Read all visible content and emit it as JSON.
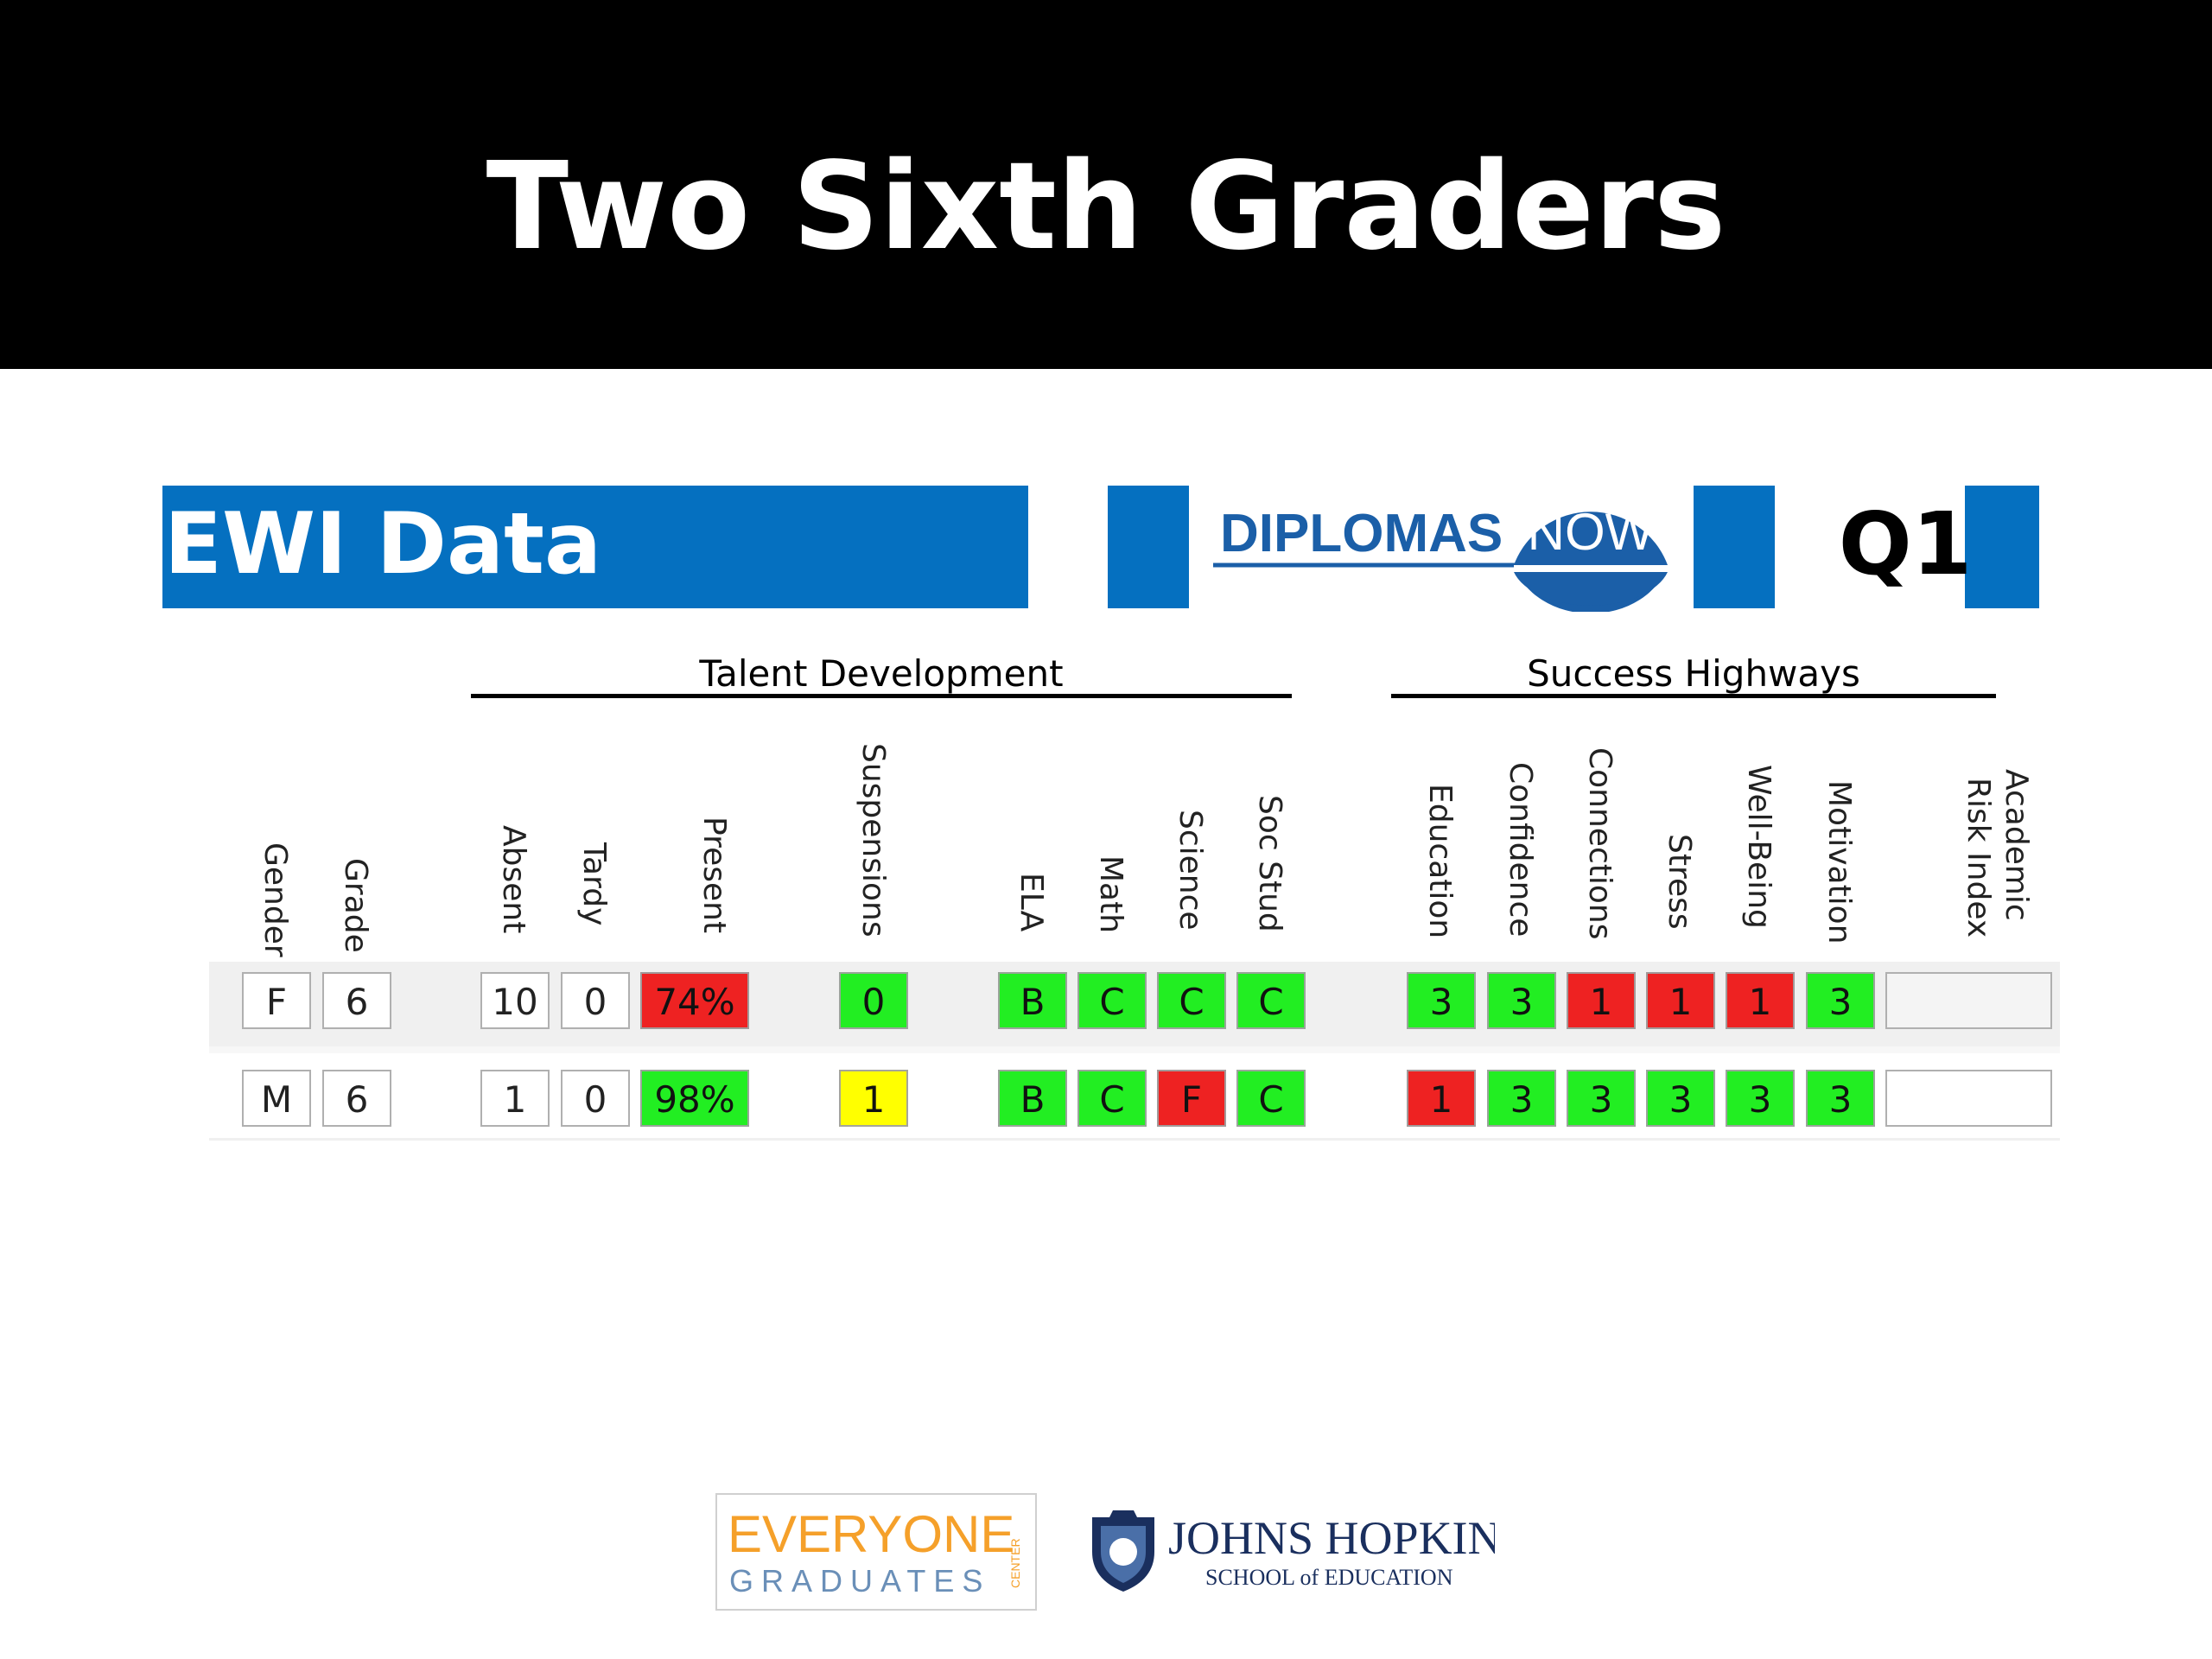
{
  "slide": {
    "title": "Two Sixth Graders"
  },
  "panel": {
    "title": "EWI Data",
    "logo_text_left": "DIPLOMAS",
    "logo_text_right": "NOW",
    "quarter": "Q1"
  },
  "groups": {
    "talent": "Talent Development",
    "success": "Success Highways"
  },
  "columns": {
    "gender": "Gender",
    "grade": "Grade",
    "absent": "Absent",
    "tardy": "Tardy",
    "present": "Present",
    "suspensions": "Suspensions",
    "ela": "ELA",
    "math": "Math",
    "science": "Science",
    "soc_stud": "Soc Stud",
    "education": "Education",
    "confidence": "Confidence",
    "connections": "Connections",
    "stress": "Stress",
    "well_being": "Well-Being",
    "motivation": "Motivation",
    "risk_1": "Academic",
    "risk_2": "Risk Index"
  },
  "rows": [
    {
      "gender": "F",
      "grade": "6",
      "absent": "10",
      "tardy": "0",
      "present": "74%",
      "suspensions": "0",
      "ela": "B",
      "math": "C",
      "science": "C",
      "soc_stud": "C",
      "education": "3",
      "confidence": "3",
      "connections": "1",
      "stress": "1",
      "well_being": "1",
      "motivation": "3",
      "risk_index": ""
    },
    {
      "gender": "M",
      "grade": "6",
      "absent": "1",
      "tardy": "0",
      "present": "98%",
      "suspensions": "1",
      "ela": "B",
      "math": "C",
      "science": "F",
      "soc_stud": "C",
      "education": "1",
      "confidence": "3",
      "connections": "3",
      "stress": "3",
      "well_being": "3",
      "motivation": "3",
      "risk_index": ""
    }
  ],
  "colors": {
    "accent_blue": "#0570c0",
    "status_green": "#22ee22",
    "status_red": "#ee2222",
    "status_yellow": "#ffff00",
    "dn_blue": "#1b5fa8",
    "eg_orange": "#f5a02a",
    "jhu_navy": "#1a2f5e"
  },
  "footer": {
    "eg_line1": "EVERYONE",
    "eg_line2": "GRADUATES",
    "eg_side": "CENTER",
    "jhu_line1": "JOHNS HOPKINS",
    "jhu_line2": "SCHOOL of EDUCATION"
  }
}
